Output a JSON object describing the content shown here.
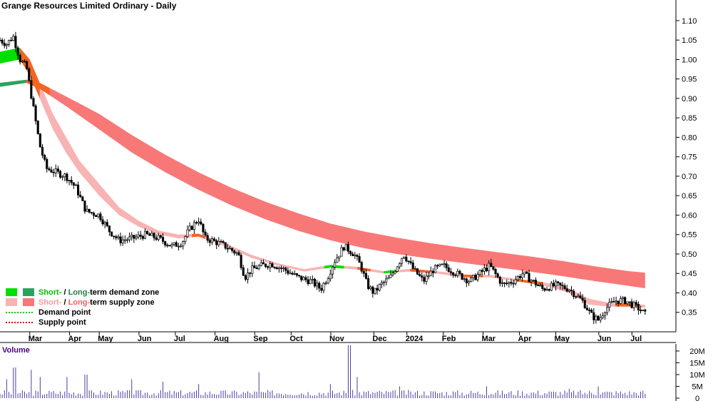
{
  "chart_data": {
    "type": "candlestick",
    "title": "Grange Resources Limited Ordinary - Daily",
    "price_axis": {
      "min": 0.3,
      "max": 1.12,
      "ticks": [
        "1.10",
        "1.05",
        "1.00",
        "0.95",
        "0.90",
        "0.85",
        "0.80",
        "0.75",
        "0.70",
        "0.65",
        "0.60",
        "0.55",
        "0.50",
        "0.45",
        "0.40",
        "0.35"
      ]
    },
    "months": [
      {
        "label": "Mar",
        "pos": 0.045
      },
      {
        "label": "Apr",
        "pos": 0.105
      },
      {
        "label": "May",
        "pos": 0.15
      },
      {
        "label": "Jun",
        "pos": 0.21
      },
      {
        "label": "Jul",
        "pos": 0.265
      },
      {
        "label": "Aug",
        "pos": 0.325
      },
      {
        "label": "Sep",
        "pos": 0.385
      },
      {
        "label": "Oct",
        "pos": 0.44
      },
      {
        "label": "Nov",
        "pos": 0.5
      },
      {
        "label": "Dec",
        "pos": 0.565
      },
      {
        "label": "2024",
        "pos": 0.615
      },
      {
        "label": "Feb",
        "pos": 0.67
      },
      {
        "label": "Mar",
        "pos": 0.73
      },
      {
        "label": "Apr",
        "pos": 0.785
      },
      {
        "label": "May",
        "pos": 0.84
      },
      {
        "label": "Jun",
        "pos": 0.905
      },
      {
        "label": "Jul",
        "pos": 0.955
      }
    ],
    "price_path": [
      [
        0.0,
        1.05
      ],
      [
        0.01,
        1.04
      ],
      [
        0.02,
        1.06
      ],
      [
        0.03,
        1.0
      ],
      [
        0.04,
        0.98
      ],
      [
        0.05,
        0.88
      ],
      [
        0.06,
        0.78
      ],
      [
        0.07,
        0.72
      ],
      [
        0.085,
        0.71
      ],
      [
        0.1,
        0.7
      ],
      [
        0.115,
        0.67
      ],
      [
        0.13,
        0.61
      ],
      [
        0.15,
        0.6
      ],
      [
        0.165,
        0.56
      ],
      [
        0.18,
        0.535
      ],
      [
        0.2,
        0.54
      ],
      [
        0.22,
        0.55
      ],
      [
        0.24,
        0.54
      ],
      [
        0.26,
        0.52
      ],
      [
        0.275,
        0.53
      ],
      [
        0.285,
        0.56
      ],
      [
        0.3,
        0.59
      ],
      [
        0.31,
        0.54
      ],
      [
        0.32,
        0.535
      ],
      [
        0.335,
        0.525
      ],
      [
        0.35,
        0.51
      ],
      [
        0.36,
        0.5
      ],
      [
        0.37,
        0.44
      ],
      [
        0.38,
        0.46
      ],
      [
        0.395,
        0.47
      ],
      [
        0.41,
        0.475
      ],
      [
        0.43,
        0.46
      ],
      [
        0.45,
        0.44
      ],
      [
        0.47,
        0.43
      ],
      [
        0.485,
        0.41
      ],
      [
        0.495,
        0.44
      ],
      [
        0.505,
        0.48
      ],
      [
        0.52,
        0.52
      ],
      [
        0.535,
        0.5
      ],
      [
        0.545,
        0.47
      ],
      [
        0.555,
        0.42
      ],
      [
        0.565,
        0.4
      ],
      [
        0.575,
        0.42
      ],
      [
        0.59,
        0.44
      ],
      [
        0.6,
        0.47
      ],
      [
        0.61,
        0.5
      ],
      [
        0.625,
        0.46
      ],
      [
        0.64,
        0.43
      ],
      [
        0.655,
        0.46
      ],
      [
        0.67,
        0.47
      ],
      [
        0.69,
        0.45
      ],
      [
        0.71,
        0.43
      ],
      [
        0.725,
        0.45
      ],
      [
        0.74,
        0.47
      ],
      [
        0.76,
        0.42
      ],
      [
        0.775,
        0.43
      ],
      [
        0.79,
        0.45
      ],
      [
        0.805,
        0.43
      ],
      [
        0.82,
        0.41
      ],
      [
        0.84,
        0.42
      ],
      [
        0.86,
        0.41
      ],
      [
        0.88,
        0.38
      ],
      [
        0.895,
        0.34
      ],
      [
        0.905,
        0.33
      ],
      [
        0.915,
        0.36
      ],
      [
        0.93,
        0.38
      ],
      [
        0.945,
        0.38
      ],
      [
        0.955,
        0.37
      ],
      [
        0.965,
        0.36
      ],
      [
        0.975,
        0.345
      ]
    ],
    "short_term_zone": [
      [
        0.0,
        0.99,
        1.02
      ],
      [
        0.03,
        1.0,
        1.03
      ],
      [
        0.045,
        0.96,
        1.0
      ],
      [
        0.06,
        0.9,
        0.94
      ],
      [
        0.08,
        0.82,
        0.86
      ],
      [
        0.1,
        0.76,
        0.8
      ],
      [
        0.12,
        0.71,
        0.74
      ],
      [
        0.15,
        0.65,
        0.68
      ],
      [
        0.18,
        0.6,
        0.62
      ],
      [
        0.21,
        0.57,
        0.585
      ],
      [
        0.24,
        0.55,
        0.56
      ],
      [
        0.27,
        0.54,
        0.55
      ],
      [
        0.3,
        0.545,
        0.552
      ],
      [
        0.34,
        0.52,
        0.528
      ],
      [
        0.38,
        0.49,
        0.498
      ],
      [
        0.42,
        0.47,
        0.476
      ],
      [
        0.46,
        0.455,
        0.461
      ],
      [
        0.5,
        0.465,
        0.472
      ],
      [
        0.54,
        0.46,
        0.467
      ],
      [
        0.58,
        0.45,
        0.456
      ],
      [
        0.62,
        0.455,
        0.462
      ],
      [
        0.66,
        0.45,
        0.456
      ],
      [
        0.7,
        0.44,
        0.447
      ],
      [
        0.74,
        0.44,
        0.446
      ],
      [
        0.78,
        0.43,
        0.436
      ],
      [
        0.82,
        0.42,
        0.428
      ],
      [
        0.86,
        0.4,
        0.412
      ],
      [
        0.89,
        0.37,
        0.385
      ],
      [
        0.92,
        0.365,
        0.375
      ],
      [
        0.96,
        0.365,
        0.372
      ],
      [
        0.975,
        0.362,
        0.369
      ]
    ],
    "long_term_zone": [
      [
        0.0,
        0.93,
        0.94
      ],
      [
        0.04,
        0.94,
        0.948
      ],
      [
        0.06,
        0.925,
        0.94
      ],
      [
        0.1,
        0.88,
        0.905
      ],
      [
        0.15,
        0.82,
        0.86
      ],
      [
        0.2,
        0.76,
        0.805
      ],
      [
        0.25,
        0.71,
        0.755
      ],
      [
        0.3,
        0.665,
        0.71
      ],
      [
        0.35,
        0.625,
        0.67
      ],
      [
        0.4,
        0.59,
        0.635
      ],
      [
        0.45,
        0.56,
        0.605
      ],
      [
        0.5,
        0.535,
        0.578
      ],
      [
        0.55,
        0.515,
        0.558
      ],
      [
        0.6,
        0.5,
        0.542
      ],
      [
        0.65,
        0.488,
        0.528
      ],
      [
        0.7,
        0.477,
        0.516
      ],
      [
        0.75,
        0.466,
        0.505
      ],
      [
        0.8,
        0.455,
        0.494
      ],
      [
        0.85,
        0.443,
        0.482
      ],
      [
        0.9,
        0.43,
        0.468
      ],
      [
        0.95,
        0.418,
        0.456
      ],
      [
        0.975,
        0.412,
        0.452
      ]
    ],
    "legend": [
      {
        "swatches": [
          "#00e000",
          "#2ca25f"
        ],
        "parts": [
          {
            "text": "Short-",
            "color": "#00c000"
          },
          {
            "text": " / ",
            "color": "#000000"
          },
          {
            "text": "Long-",
            "color": "#1b7f46"
          },
          {
            "text": "term demand zone",
            "color": "#000000"
          }
        ]
      },
      {
        "swatches": [
          "#f8b3b3",
          "#f87878"
        ],
        "parts": [
          {
            "text": "Short-",
            "color": "#f49a9a"
          },
          {
            "text": " / ",
            "color": "#000000"
          },
          {
            "text": "Long-",
            "color": "#f06060"
          },
          {
            "text": "term supply zone",
            "color": "#000000"
          }
        ]
      },
      {
        "dots": "#00cc00",
        "parts": [
          {
            "text": "Demand point",
            "color": "#000000"
          }
        ]
      },
      {
        "dots": "#dd0000",
        "parts": [
          {
            "text": "Supply point",
            "color": "#000000"
          }
        ]
      }
    ],
    "volume": {
      "label": "Volume",
      "max": 23,
      "ticks": [
        "20M",
        "15M",
        "10M",
        "5M",
        "0"
      ],
      "spikes": [
        [
          0.01,
          8
        ],
        [
          0.022,
          13
        ],
        [
          0.048,
          12
        ],
        [
          0.06,
          9
        ],
        [
          0.1,
          9
        ],
        [
          0.13,
          10
        ],
        [
          0.2,
          8
        ],
        [
          0.245,
          7
        ],
        [
          0.3,
          6
        ],
        [
          0.39,
          11
        ],
        [
          0.5,
          6
        ],
        [
          0.528,
          22.5
        ],
        [
          0.54,
          9
        ],
        [
          0.605,
          5
        ],
        [
          0.735,
          5
        ],
        [
          0.86,
          4
        ],
        [
          0.905,
          5
        ]
      ]
    },
    "colors": {
      "candle": "#000000",
      "short_supply": "#f8b3b3",
      "long_supply": "#f87878",
      "short_demand": "#00e000",
      "long_demand": "#2ca25f",
      "transition_supply": "#f26522",
      "volume_bar": "#4b3f9e",
      "grid": "#000000"
    }
  }
}
